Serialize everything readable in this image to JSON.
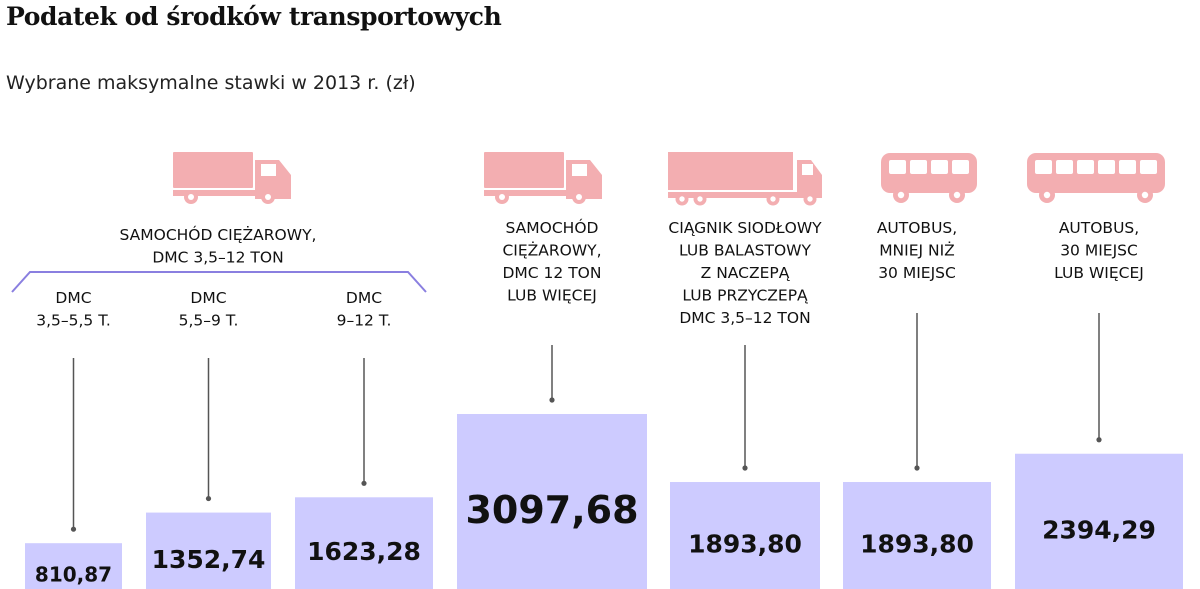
{
  "header": {
    "title": "Podatek od środków transportowych",
    "subtitle": "Wybrane maksymalne stawki w 2013 r. (zł)"
  },
  "group": {
    "label_lines": [
      "SAMOCHÓD CIĘŻAROWY,",
      "DMC 3,5–12 TON"
    ]
  },
  "colors": {
    "bar": "#cdcbff",
    "icon": "#f3aeb1",
    "line": "#555555",
    "bracket": "#8a7fe0"
  },
  "chart_data": {
    "type": "bar",
    "title": "Podatek od środków transportowych",
    "subtitle": "Wybrane maksymalne stawki w 2013 r. (zł)",
    "categories": [
      [
        "DMC",
        "3,5–5,5 T."
      ],
      [
        "DMC",
        "5,5–9 T."
      ],
      [
        "DMC",
        "9–12 T."
      ],
      [
        "SAMOCHÓD",
        "CIĘŻAROWY,",
        "DMC 12 TON",
        "LUB WIĘCEJ"
      ],
      [
        "CIĄGNIK SIODŁOWY",
        "LUB BALASTOWY",
        "Z NACZEPĄ",
        "LUB PRZYCZEPĄ",
        "DMC 3,5–12 TON"
      ],
      [
        "AUTOBUS,",
        "MNIEJ NIŻ",
        "30 MIEJSC"
      ],
      [
        "AUTOBUS,",
        "30 MIEJSC",
        "LUB WIĘCEJ"
      ]
    ],
    "values": [
      810.87,
      1352.74,
      1623.28,
      3097.68,
      1893.8,
      1893.8,
      2394.29
    ],
    "value_labels": [
      "810,87",
      "1352,74",
      "1623,28",
      "3097,68",
      "1893,80",
      "1893,80",
      "2394,29"
    ],
    "icons": [
      "",
      "",
      "",
      "truck-icon",
      "semi-trailer-truck-icon",
      "bus-icon",
      "bus-icon"
    ],
    "group_icon": "truck-icon",
    "grouped_categories": [
      0,
      1,
      2
    ]
  }
}
